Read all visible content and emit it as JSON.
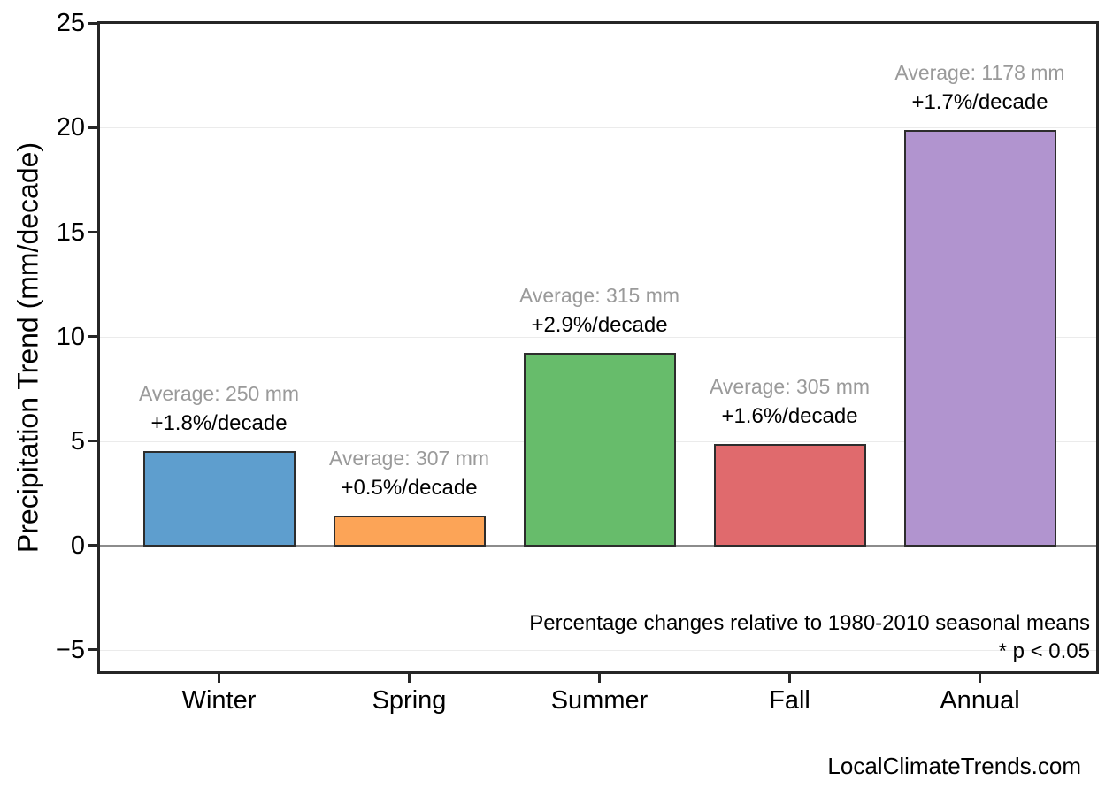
{
  "chart_data": {
    "type": "bar",
    "title": "",
    "ylabel": "Precipitation Trend (mm/decade)",
    "xlabel": "",
    "categories": [
      "Winter",
      "Spring",
      "Summer",
      "Fall",
      "Annual"
    ],
    "values": [
      4.5,
      1.45,
      9.2,
      4.85,
      19.9
    ],
    "averages_mm": [
      250,
      307,
      315,
      305,
      1178
    ],
    "trend_pct_per_decade": [
      1.8,
      0.5,
      2.9,
      1.6,
      1.7
    ],
    "average_labels": [
      "Average: 250 mm",
      "Average: 307 mm",
      "Average: 315 mm",
      "Average: 305 mm",
      "Average: 1178 mm"
    ],
    "trend_labels": [
      "+1.8%/decade",
      "+0.5%/decade",
      "+2.9%/decade",
      "+1.6%/decade",
      "+1.7%/decade"
    ],
    "bar_colors": [
      "#5E9ECE",
      "#FCA457",
      "#67BC6B",
      "#E06A6D",
      "#B194CF"
    ],
    "yticks": [
      25,
      20,
      15,
      10,
      5,
      0,
      -5
    ],
    "ylim": [
      -6.15,
      25.1
    ],
    "grid": "horizontal-light",
    "legend": "none",
    "note_line1": "Percentage changes relative to 1980-2010 seasonal means",
    "note_line2": "* p < 0.05",
    "watermark": "LocalClimateTrends.com",
    "colors": {
      "avg_label_text": "#9a9a9a",
      "trend_label_text": "#000000",
      "bar_edge": "#2d2d2d",
      "axis_frame": "#262626",
      "gridline": "#ebebeb",
      "zero_line": "#8c8c8c",
      "background": "#ffffff"
    }
  }
}
